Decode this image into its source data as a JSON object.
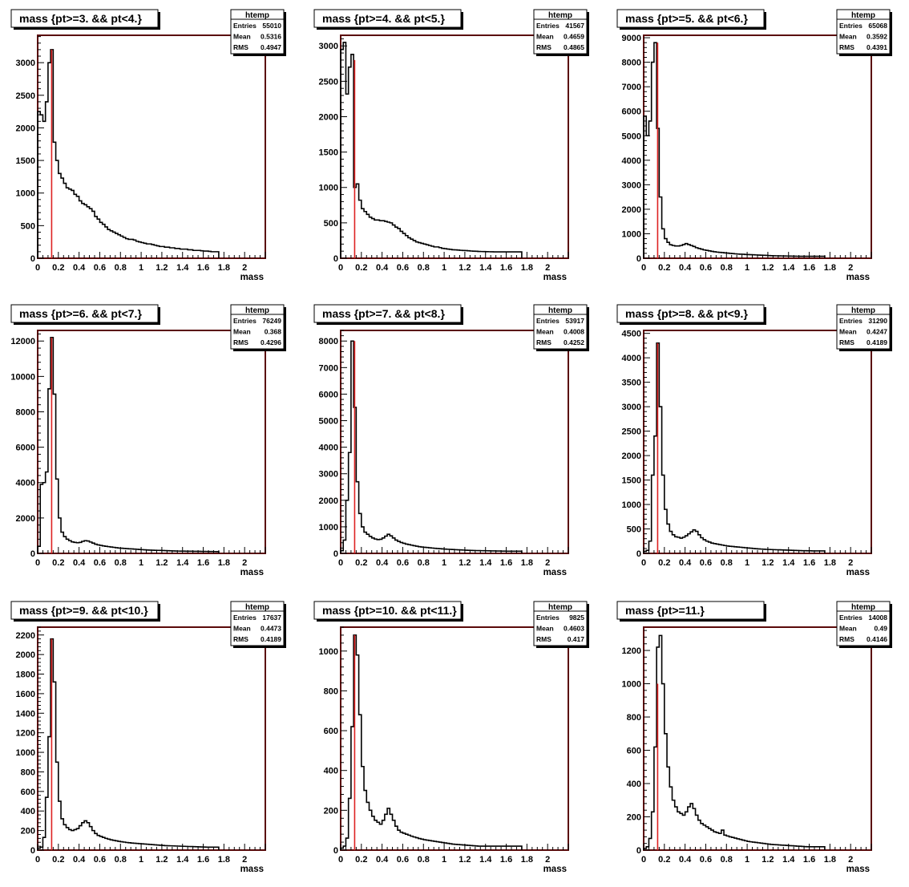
{
  "colors": {
    "frame": "#5a0a0a",
    "marker": "#dd2222",
    "hist": "#000000",
    "shadow": "#000000",
    "background": "#ffffff"
  },
  "chart_data": [
    {
      "type": "histogram",
      "title": "mass {pt>=3. && pt<4.}",
      "xlabel": "mass",
      "ylabel": "",
      "xlim": [
        0,
        2.2
      ],
      "ylim": [
        0,
        3420
      ],
      "xticks": [
        0,
        0.2,
        0.4,
        0.6,
        0.8,
        1,
        1.2,
        1.4,
        1.6,
        1.8,
        2
      ],
      "xtick_labels": [
        "0",
        "0.2",
        "0.4",
        "0.6",
        "0.8",
        "1",
        "1.2",
        "1.4",
        "1.6",
        "1.8",
        "2"
      ],
      "yticks": [
        0,
        500,
        1000,
        1500,
        2000,
        2500,
        3000
      ],
      "ytick_labels": [
        "0",
        "500",
        "1000",
        "1500",
        "2000",
        "2500",
        "3000"
      ],
      "marker_line": {
        "x": 0.135,
        "y": 3200
      },
      "stats": {
        "name": "htemp",
        "entries": "55010",
        "mean": "0.5316",
        "rms": "0.4947"
      },
      "bin_width": 0.025,
      "x_start": 0,
      "values": [
        2250,
        2200,
        2100,
        2400,
        3000,
        3200,
        1780,
        1500,
        1300,
        1230,
        1150,
        1080,
        1060,
        1040,
        980,
        950,
        880,
        840,
        820,
        790,
        760,
        720,
        640,
        600,
        550,
        520,
        480,
        440,
        420,
        400,
        380,
        360,
        340,
        320,
        300,
        290,
        290,
        280,
        260,
        250,
        240,
        230,
        220,
        220,
        210,
        200,
        190,
        180,
        180,
        170,
        170,
        160,
        160,
        150,
        150,
        140,
        140,
        140,
        130,
        130,
        120,
        120,
        120,
        115,
        110,
        110,
        105,
        100,
        100,
        100
      ]
    },
    {
      "type": "histogram",
      "title": "mass {pt>=4. && pt<5.}",
      "xlabel": "mass",
      "ylabel": "",
      "xlim": [
        0,
        2.2
      ],
      "ylim": [
        0,
        3150
      ],
      "xticks": [
        0,
        0.2,
        0.4,
        0.6,
        0.8,
        1,
        1.2,
        1.4,
        1.6,
        1.8,
        2
      ],
      "xtick_labels": [
        "0",
        "0.2",
        "0.4",
        "0.6",
        "0.8",
        "1",
        "1.2",
        "1.4",
        "1.6",
        "1.8",
        "2"
      ],
      "yticks": [
        0,
        500,
        1000,
        1500,
        2000,
        2500,
        3000
      ],
      "ytick_labels": [
        "0",
        "500",
        "1000",
        "1500",
        "2000",
        "2500",
        "3000"
      ],
      "marker_line": {
        "x": 0.135,
        "y": 2800
      },
      "stats": {
        "name": "htemp",
        "entries": "41567",
        "mean": "0.4659",
        "rms": "0.4865"
      },
      "bin_width": 0.025,
      "x_start": 0,
      "values": [
        2950,
        3050,
        2320,
        2700,
        2880,
        1000,
        1050,
        820,
        700,
        660,
        620,
        580,
        560,
        540,
        540,
        530,
        530,
        520,
        510,
        500,
        470,
        440,
        420,
        380,
        350,
        320,
        290,
        270,
        250,
        230,
        220,
        210,
        200,
        190,
        180,
        170,
        160,
        160,
        150,
        140,
        135,
        130,
        125,
        120,
        118,
        115,
        112,
        110,
        108,
        105,
        102,
        100,
        98,
        96,
        95,
        94,
        93,
        92,
        91,
        90,
        90,
        90,
        90,
        90,
        90,
        90,
        90,
        90,
        90,
        90
      ]
    },
    {
      "type": "histogram",
      "title": "mass {pt>=5. && pt<6.}",
      "xlabel": "mass",
      "ylabel": "",
      "xlim": [
        0,
        2.2
      ],
      "ylim": [
        0,
        9100
      ],
      "xticks": [
        0,
        0.2,
        0.4,
        0.6,
        0.8,
        1,
        1.2,
        1.4,
        1.6,
        1.8,
        2
      ],
      "xtick_labels": [
        "0",
        "0.2",
        "0.4",
        "0.6",
        "0.8",
        "1",
        "1.2",
        "1.4",
        "1.6",
        "1.8",
        "2"
      ],
      "yticks": [
        0,
        1000,
        2000,
        3000,
        4000,
        5000,
        6000,
        7000,
        8000,
        9000
      ],
      "ytick_labels": [
        "0",
        "1000",
        "2000",
        "3000",
        "4000",
        "5000",
        "6000",
        "7000",
        "8000",
        "9000"
      ],
      "marker_line": {
        "x": 0.135,
        "y": 8800
      },
      "stats": {
        "name": "htemp",
        "entries": "65068",
        "mean": "0.3592",
        "rms": "0.4391"
      },
      "bin_width": 0.025,
      "x_start": 0,
      "values": [
        5800,
        5000,
        5600,
        8000,
        8800,
        5300,
        2500,
        1200,
        800,
        650,
        550,
        520,
        500,
        500,
        520,
        560,
        600,
        560,
        520,
        480,
        430,
        400,
        370,
        340,
        320,
        300,
        280,
        265,
        250,
        240,
        230,
        220,
        210,
        200,
        190,
        180,
        172,
        165,
        160,
        155,
        150,
        145,
        140,
        135,
        130,
        125,
        120,
        115,
        110,
        105,
        100,
        98,
        96,
        94,
        92,
        90,
        88,
        86,
        84,
        82,
        80,
        80,
        80,
        80,
        80,
        80,
        80,
        80,
        80,
        80
      ]
    },
    {
      "type": "histogram",
      "title": "mass {pt>=6. && pt<7.}",
      "xlabel": "mass",
      "ylabel": "",
      "xlim": [
        0,
        2.2
      ],
      "ylim": [
        0,
        12600
      ],
      "xticks": [
        0,
        0.2,
        0.4,
        0.6,
        0.8,
        1,
        1.2,
        1.4,
        1.6,
        1.8,
        2
      ],
      "xtick_labels": [
        "0",
        "0.2",
        "0.4",
        "0.6",
        "0.8",
        "1",
        "1.2",
        "1.4",
        "1.6",
        "1.8",
        "2"
      ],
      "yticks": [
        0,
        2000,
        4000,
        6000,
        8000,
        10000,
        12000
      ],
      "ytick_labels": [
        "0",
        "2000",
        "4000",
        "6000",
        "8000",
        "10000",
        "12000"
      ],
      "marker_line": {
        "x": 0.135,
        "y": 12200
      },
      "stats": {
        "name": "htemp",
        "entries": "76249",
        "mean": "0.368",
        "rms": "0.4296"
      },
      "bin_width": 0.025,
      "x_start": 0,
      "values": [
        400,
        3900,
        4000,
        4600,
        9300,
        12200,
        9000,
        4200,
        2000,
        1200,
        950,
        800,
        720,
        650,
        620,
        600,
        620,
        680,
        720,
        700,
        640,
        580,
        520,
        480,
        450,
        420,
        400,
        380,
        360,
        340,
        320,
        300,
        290,
        280,
        270,
        260,
        250,
        240,
        230,
        220,
        210,
        200,
        190,
        185,
        180,
        175,
        170,
        165,
        160,
        155,
        150,
        145,
        140,
        135,
        130,
        128,
        126,
        124,
        122,
        120,
        118,
        116,
        114,
        112,
        110,
        108,
        106,
        104,
        102,
        100
      ]
    },
    {
      "type": "histogram",
      "title": "mass {pt>=7. && pt<8.}",
      "xlabel": "mass",
      "ylabel": "",
      "xlim": [
        0,
        2.2
      ],
      "ylim": [
        0,
        8400
      ],
      "xticks": [
        0,
        0.2,
        0.4,
        0.6,
        0.8,
        1,
        1.2,
        1.4,
        1.6,
        1.8,
        2
      ],
      "xtick_labels": [
        "0",
        "0.2",
        "0.4",
        "0.6",
        "0.8",
        "1",
        "1.2",
        "1.4",
        "1.6",
        "1.8",
        "2"
      ],
      "yticks": [
        0,
        1000,
        2000,
        3000,
        4000,
        5000,
        6000,
        7000,
        8000
      ],
      "ytick_labels": [
        "0",
        "1000",
        "2000",
        "3000",
        "4000",
        "5000",
        "6000",
        "7000",
        "8000"
      ],
      "marker_line": {
        "x": 0.135,
        "y": 8000
      },
      "stats": {
        "name": "htemp",
        "entries": "53917",
        "mean": "0.4008",
        "rms": "0.4252"
      },
      "bin_width": 0.025,
      "x_start": 0,
      "values": [
        100,
        500,
        2000,
        3800,
        8000,
        5500,
        2700,
        1500,
        1000,
        800,
        720,
        640,
        580,
        540,
        520,
        530,
        580,
        650,
        720,
        660,
        580,
        500,
        450,
        410,
        380,
        350,
        330,
        310,
        290,
        270,
        250,
        240,
        230,
        220,
        210,
        200,
        190,
        182,
        175,
        168,
        160,
        155,
        150,
        145,
        140,
        135,
        130,
        125,
        120,
        115,
        110,
        108,
        106,
        104,
        102,
        100,
        98,
        96,
        94,
        92,
        90,
        88,
        86,
        84,
        82,
        80,
        80,
        80,
        80,
        80
      ]
    },
    {
      "type": "histogram",
      "title": "mass {pt>=8. && pt<9.}",
      "xlabel": "mass",
      "ylabel": "",
      "xlim": [
        0,
        2.2
      ],
      "ylim": [
        0,
        4560
      ],
      "xticks": [
        0,
        0.2,
        0.4,
        0.6,
        0.8,
        1,
        1.2,
        1.4,
        1.6,
        1.8,
        2
      ],
      "xtick_labels": [
        "0",
        "0.2",
        "0.4",
        "0.6",
        "0.8",
        "1",
        "1.2",
        "1.4",
        "1.6",
        "1.8",
        "2"
      ],
      "yticks": [
        0,
        500,
        1000,
        1500,
        2000,
        2500,
        3000,
        3500,
        4000,
        4500
      ],
      "ytick_labels": [
        "0",
        "500",
        "1000",
        "1500",
        "2000",
        "2500",
        "3000",
        "3500",
        "4000",
        "4500"
      ],
      "marker_line": {
        "x": 0.135,
        "y": 4300
      },
      "stats": {
        "name": "htemp",
        "entries": "31290",
        "mean": "0.4247",
        "rms": "0.4189"
      },
      "bin_width": 0.025,
      "x_start": 0,
      "values": [
        40,
        60,
        250,
        1600,
        2400,
        4300,
        3000,
        1600,
        900,
        600,
        450,
        380,
        340,
        330,
        310,
        330,
        360,
        400,
        440,
        480,
        450,
        380,
        320,
        280,
        250,
        230,
        210,
        200,
        190,
        180,
        170,
        160,
        150,
        145,
        140,
        135,
        130,
        125,
        120,
        115,
        110,
        105,
        100,
        96,
        92,
        88,
        85,
        82,
        80,
        78,
        76,
        74,
        72,
        70,
        68,
        66,
        64,
        62,
        60,
        58,
        56,
        55,
        54,
        53,
        52,
        51,
        50,
        50,
        50,
        50
      ]
    },
    {
      "type": "histogram",
      "title": "mass {pt>=9. && pt<10.}",
      "xlabel": "mass",
      "ylabel": "",
      "xlim": [
        0,
        2.2
      ],
      "ylim": [
        0,
        2280
      ],
      "xticks": [
        0,
        0.2,
        0.4,
        0.6,
        0.8,
        1,
        1.2,
        1.4,
        1.6,
        1.8,
        2
      ],
      "xtick_labels": [
        "0",
        "0.2",
        "0.4",
        "0.6",
        "0.8",
        "1",
        "1.2",
        "1.4",
        "1.6",
        "1.8",
        "2"
      ],
      "yticks": [
        0,
        200,
        400,
        600,
        800,
        1000,
        1200,
        1400,
        1600,
        1800,
        2000,
        2200
      ],
      "ytick_labels": [
        "0",
        "200",
        "400",
        "600",
        "800",
        "1000",
        "1200",
        "1400",
        "1600",
        "1800",
        "2000",
        "2200"
      ],
      "marker_line": {
        "x": 0.135,
        "y": 2160
      },
      "stats": {
        "name": "htemp",
        "entries": "17637",
        "mean": "0.4473",
        "rms": "0.4189"
      },
      "bin_width": 0.025,
      "x_start": 0,
      "values": [
        20,
        30,
        130,
        540,
        1160,
        2160,
        1720,
        900,
        500,
        320,
        260,
        230,
        210,
        200,
        210,
        220,
        250,
        280,
        300,
        280,
        240,
        200,
        170,
        150,
        140,
        130,
        120,
        112,
        105,
        100,
        95,
        90,
        86,
        82,
        78,
        75,
        72,
        70,
        68,
        66,
        64,
        62,
        60,
        58,
        56,
        54,
        52,
        50,
        48,
        46,
        45,
        44,
        43,
        42,
        41,
        40,
        39,
        38,
        37,
        36,
        35,
        34,
        33,
        32,
        31,
        30,
        30,
        30,
        30,
        30
      ]
    },
    {
      "type": "histogram",
      "title": "mass {pt>=10. && pt<11.}",
      "xlabel": "mass",
      "ylabel": "",
      "xlim": [
        0,
        2.2
      ],
      "ylim": [
        0,
        1120
      ],
      "xticks": [
        0,
        0.2,
        0.4,
        0.6,
        0.8,
        1,
        1.2,
        1.4,
        1.6,
        1.8,
        2
      ],
      "xtick_labels": [
        "0",
        "0.2",
        "0.4",
        "0.6",
        "0.8",
        "1",
        "1.2",
        "1.4",
        "1.6",
        "1.8",
        "2"
      ],
      "yticks": [
        0,
        200,
        400,
        600,
        800,
        1000
      ],
      "ytick_labels": [
        "0",
        "200",
        "400",
        "600",
        "800",
        "1000"
      ],
      "marker_line": {
        "x": 0.135,
        "y": 1080
      },
      "stats": {
        "name": "htemp",
        "entries": "9825",
        "mean": "0.4603",
        "rms": "0.417"
      },
      "bin_width": 0.025,
      "x_start": 0,
      "values": [
        10,
        20,
        60,
        260,
        620,
        1080,
        980,
        680,
        420,
        300,
        240,
        200,
        170,
        150,
        140,
        130,
        150,
        180,
        210,
        180,
        150,
        120,
        100,
        90,
        85,
        80,
        75,
        70,
        66,
        62,
        58,
        55,
        52,
        50,
        48,
        46,
        44,
        42,
        40,
        38,
        36,
        34,
        32,
        30,
        29,
        28,
        27,
        26,
        25,
        24,
        23,
        22,
        21,
        20,
        20,
        20,
        20,
        20,
        20,
        20,
        20,
        20,
        20,
        20,
        20,
        20,
        20,
        20,
        20,
        20
      ]
    },
    {
      "type": "histogram",
      "title": "mass {pt>=11.}",
      "xlabel": "mass",
      "ylabel": "",
      "xlim": [
        0,
        2.2
      ],
      "ylim": [
        0,
        1340
      ],
      "xticks": [
        0,
        0.2,
        0.4,
        0.6,
        0.8,
        1,
        1.2,
        1.4,
        1.6,
        1.8,
        2
      ],
      "xtick_labels": [
        "0",
        "0.2",
        "0.4",
        "0.6",
        "0.8",
        "1",
        "1.2",
        "1.4",
        "1.6",
        "1.8",
        "2"
      ],
      "yticks": [
        0,
        200,
        400,
        600,
        800,
        1000,
        1200
      ],
      "ytick_labels": [
        "0",
        "200",
        "400",
        "600",
        "800",
        "1000",
        "1200"
      ],
      "marker_line": {
        "x": 0.135,
        "y": 1000
      },
      "stats": {
        "name": "htemp",
        "entries": "14008",
        "mean": "0.49",
        "rms": "0.4146"
      },
      "bin_width": 0.025,
      "x_start": 0,
      "values": [
        10,
        20,
        70,
        230,
        620,
        1220,
        1290,
        1000,
        700,
        500,
        380,
        300,
        260,
        230,
        220,
        210,
        230,
        260,
        280,
        250,
        210,
        180,
        160,
        150,
        140,
        130,
        120,
        110,
        105,
        100,
        120,
        90,
        85,
        80,
        76,
        72,
        68,
        64,
        60,
        56,
        52,
        50,
        48,
        46,
        44,
        42,
        40,
        38,
        36,
        34,
        33,
        32,
        31,
        30,
        29,
        28,
        27,
        26,
        25,
        24,
        23,
        22,
        21,
        20,
        20,
        20,
        20,
        20,
        20,
        20
      ]
    }
  ]
}
